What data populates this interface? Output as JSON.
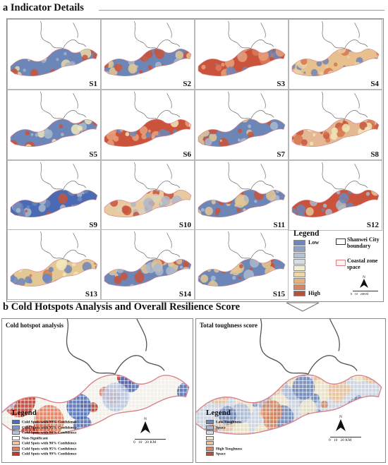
{
  "section_a_title": "a Indicator Details",
  "section_b_title": "b Cold Hotspots Analysis and Overall Resilience Score",
  "tiles": [
    {
      "label": "S1",
      "ramp": [
        "#6d86b8",
        "#e8d9a3",
        "#c9543b",
        "#9fb2c9"
      ],
      "dom": 0
    },
    {
      "label": "S2",
      "ramp": [
        "#6d86b8",
        "#e3c794",
        "#c9543b",
        "#a9b9cc"
      ],
      "dom": 0
    },
    {
      "label": "S3",
      "ramp": [
        "#c9543b",
        "#e8a07a",
        "#6d86b8",
        "#d87a5a"
      ],
      "dom": 0
    },
    {
      "label": "S4",
      "ramp": [
        "#e8c08d",
        "#d7764f",
        "#6d86b8",
        "#e8d1a8"
      ],
      "dom": 0
    },
    {
      "label": "S5",
      "ramp": [
        "#6d86b8",
        "#a9b9cc",
        "#c9543b",
        "#f1e6b8"
      ],
      "dom": 0
    },
    {
      "label": "S6",
      "ramp": [
        "#c9543b",
        "#e8a07a",
        "#6d86b8",
        "#f1e6b8"
      ],
      "dom": 0
    },
    {
      "label": "S7",
      "ramp": [
        "#6d86b8",
        "#a9b9cc",
        "#e3c794",
        "#c9543b"
      ],
      "dom": 0
    },
    {
      "label": "S8",
      "ramp": [
        "#e3b893",
        "#c9543b",
        "#f1e6b8",
        "#d7764f"
      ],
      "dom": 0
    },
    {
      "label": "S9",
      "ramp": [
        "#4a6bb3",
        "#6d86b8",
        "#c9543b",
        "#a9b9cc"
      ],
      "dom": 0
    },
    {
      "label": "S10",
      "ramp": [
        "#e8c9a0",
        "#c9543b",
        "#d8d3bd",
        "#b0b8c9"
      ],
      "dom": 0
    },
    {
      "label": "S11",
      "ramp": [
        "#6d86b8",
        "#a9b9cc",
        "#e3c794",
        "#c9543b"
      ],
      "dom": 0
    },
    {
      "label": "S12",
      "ramp": [
        "#c9543b",
        "#6d86b8",
        "#e3c794",
        "#a9b9cc"
      ],
      "dom": 0
    },
    {
      "label": "S13",
      "ramp": [
        "#e3c794",
        "#d7764f",
        "#6d86b8",
        "#f1e6b8"
      ],
      "dom": 0
    },
    {
      "label": "S14",
      "ramp": [
        "#6d86b8",
        "#a9b9cc",
        "#e3c794",
        "#c9543b"
      ],
      "dom": 0
    },
    {
      "label": "S15",
      "ramp": [
        "#6d86b8",
        "#c9543b",
        "#e3c794",
        "#a9b9cc"
      ],
      "dom": 0
    }
  ],
  "legend_a": {
    "title": "Legend",
    "low": "Low",
    "high": "High",
    "colors": [
      "#6d86b8",
      "#8fa2c6",
      "#b4c1d4",
      "#d7dde4",
      "#f3efce",
      "#eed7a2",
      "#e5b27e",
      "#d7855a",
      "#b8513a"
    ],
    "boundary_label": "Shanwei City boundary",
    "coastal_label": "Coastal zone space",
    "north": "N",
    "scale": "0   10   20KM"
  },
  "panel_cold": {
    "title": "Cold hotspot analysis",
    "legend_title": "Legend",
    "items": [
      {
        "label": "Cold Spots with 99% Confidence",
        "color": "#4b6cb7"
      },
      {
        "label": "Cold Spots with 95% Confidence",
        "color": "#7f98c8"
      },
      {
        "label": "Cold Spots with 90% Confidence",
        "color": "#b6c4de"
      },
      {
        "label": "Non-Significant",
        "color": "#ffffff"
      },
      {
        "label": "Cold Spots with 90% Confidence",
        "color": "#f0c6a8"
      },
      {
        "label": "Cold Spots with 95% Confidence",
        "color": "#e07b5c"
      },
      {
        "label": "Cold Spots with 99% Confidence",
        "color": "#c0392b"
      }
    ],
    "north": "N",
    "scale": "0   10   20 KM"
  },
  "panel_total": {
    "title": "Total toughness score",
    "legend_title": "Legend",
    "items": [
      {
        "label": "Low Toughness",
        "color": "#6d86b8"
      },
      {
        "label": "Space",
        "color": "#a9b9d6"
      },
      {
        "label": "",
        "color": "#d7dde4"
      },
      {
        "label": "",
        "color": "#efe5c5"
      },
      {
        "label": "",
        "color": "#e9c39d"
      },
      {
        "label": "High Toughness",
        "color": "#d7855a"
      },
      {
        "label": "Space",
        "color": "#b8513a"
      }
    ],
    "north": "N",
    "scale": "0   10   20 KM"
  }
}
